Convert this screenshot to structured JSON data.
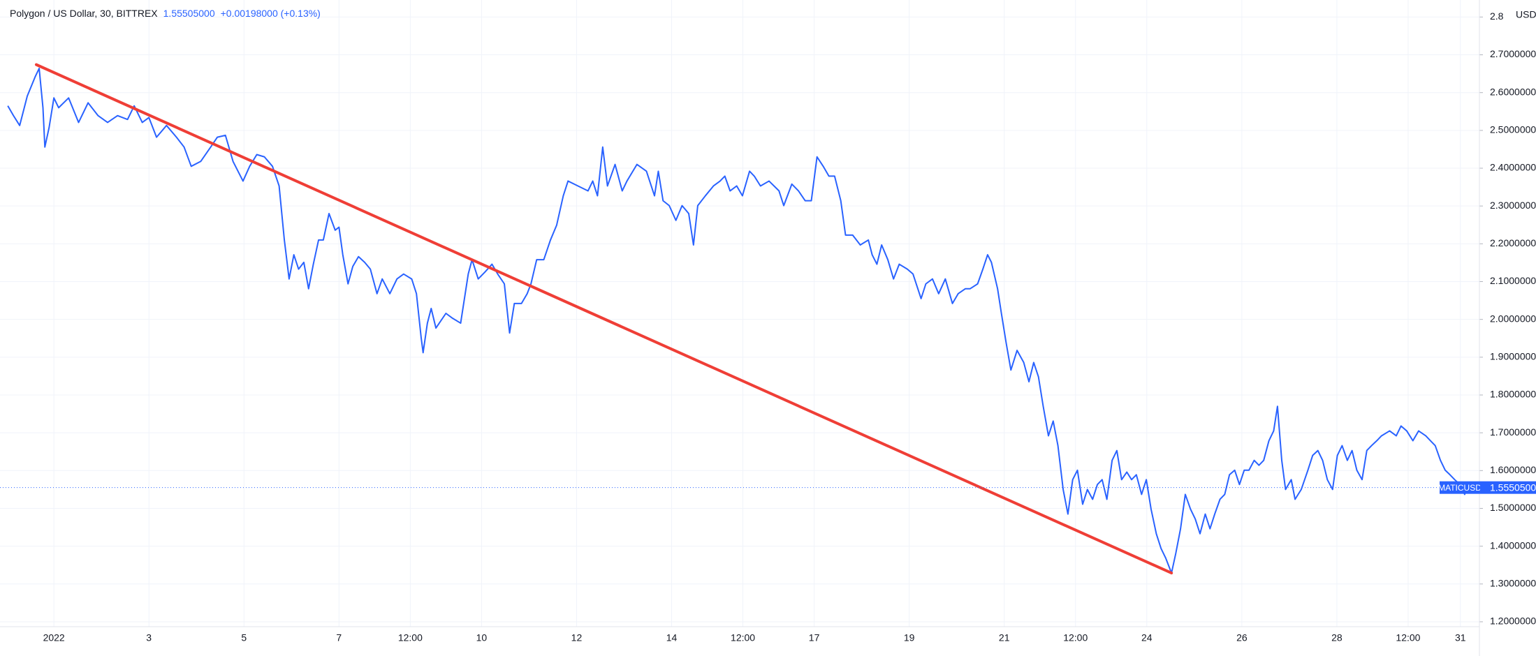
{
  "chart_data": {
    "type": "line",
    "title": "Polygon / US Dollar, 30, BITTREX",
    "change": "+0.00198000 (+0.13%)",
    "symbol": "MATICUSD",
    "currency": "USD",
    "last": {
      "value": 1.55505,
      "label": "1.55505000"
    },
    "grid": true,
    "xlim": [
      -0.134,
      31.0
    ],
    "ylim": [
      1.187,
      2.845
    ],
    "xticks": [
      {
        "value": 1,
        "label": "2022"
      },
      3,
      5,
      7,
      {
        "value": 8.5,
        "label": "12:00"
      },
      10,
      12,
      14,
      {
        "value": 15.5,
        "label": "12:00"
      },
      17,
      19,
      21,
      {
        "value": 22.5,
        "label": "12:00"
      },
      24,
      26,
      28,
      {
        "value": 29.5,
        "label": "12:00"
      },
      {
        "value": 30.6,
        "label": "31"
      }
    ],
    "yticks": [
      {
        "value": 1.2,
        "label": "1.20000000"
      },
      {
        "value": 1.3,
        "label": "1.30000000"
      },
      {
        "value": 1.4,
        "label": "1.40000000"
      },
      {
        "value": 1.5,
        "label": "1.50000000"
      },
      {
        "value": 1.6,
        "label": "1.60000000"
      },
      {
        "value": 1.7,
        "label": "1.70000000"
      },
      {
        "value": 1.8,
        "label": "1.80000000"
      },
      {
        "value": 1.9,
        "label": "1.90000000"
      },
      {
        "value": 2.0,
        "label": "2.00000000"
      },
      {
        "value": 2.1,
        "label": "2.10000000"
      },
      {
        "value": 2.2,
        "label": "2.20000000"
      },
      {
        "value": 2.3,
        "label": "2.30000000"
      },
      {
        "value": 2.4,
        "label": "2.40000000"
      },
      {
        "value": 2.5,
        "label": "2.50000000"
      },
      {
        "value": 2.6,
        "label": "2.60000000"
      },
      {
        "value": 2.7,
        "label": "2.70000000"
      },
      2.8
    ],
    "trendline": {
      "color": "#ef3e36",
      "x": [
        0.63,
        24.52
      ],
      "values": [
        2.674,
        1.329
      ]
    },
    "x": [
      0.03,
      0.15,
      0.28,
      0.44,
      0.61,
      0.69,
      0.77,
      0.81,
      0.9,
      1.0,
      1.1,
      1.31,
      1.52,
      1.72,
      1.93,
      2.13,
      2.34,
      2.55,
      2.69,
      2.86,
      3.0,
      3.16,
      3.37,
      3.58,
      3.74,
      3.89,
      4.09,
      4.3,
      4.44,
      4.61,
      4.77,
      4.98,
      5.12,
      5.27,
      5.43,
      5.6,
      5.74,
      5.85,
      5.95,
      6.05,
      6.15,
      6.26,
      6.36,
      6.46,
      6.57,
      6.67,
      6.79,
      6.92,
      7.0,
      7.08,
      7.19,
      7.29,
      7.41,
      7.54,
      7.66,
      7.8,
      7.91,
      8.07,
      8.22,
      8.36,
      8.53,
      8.63,
      8.73,
      8.77,
      8.86,
      8.94,
      9.04,
      9.25,
      9.39,
      9.56,
      9.72,
      9.8,
      9.93,
      10.07,
      10.22,
      10.34,
      10.48,
      10.59,
      10.69,
      10.84,
      10.96,
      11.04,
      11.16,
      11.31,
      11.45,
      11.58,
      11.72,
      11.82,
      12.03,
      12.24,
      12.34,
      12.44,
      12.55,
      12.65,
      12.81,
      12.96,
      13.06,
      13.27,
      13.47,
      13.64,
      13.72,
      13.82,
      13.95,
      14.09,
      14.22,
      14.36,
      14.46,
      14.55,
      14.71,
      14.88,
      15.02,
      15.12,
      15.23,
      15.37,
      15.49,
      15.64,
      15.74,
      15.87,
      16.05,
      16.26,
      16.36,
      16.53,
      16.67,
      16.81,
      16.94,
      17.06,
      17.19,
      17.31,
      17.43,
      17.56,
      17.66,
      17.81,
      17.97,
      18.14,
      18.22,
      18.32,
      18.42,
      18.55,
      18.67,
      18.79,
      18.96,
      19.08,
      19.25,
      19.35,
      19.49,
      19.62,
      19.76,
      19.91,
      20.03,
      20.18,
      20.28,
      20.44,
      20.55,
      20.65,
      20.73,
      20.86,
      20.94,
      21.04,
      21.14,
      21.27,
      21.41,
      21.52,
      21.62,
      21.72,
      21.82,
      21.93,
      22.03,
      22.13,
      22.24,
      22.34,
      22.44,
      22.54,
      22.65,
      22.75,
      22.86,
      22.96,
      23.06,
      23.16,
      23.27,
      23.37,
      23.47,
      23.58,
      23.68,
      23.78,
      23.89,
      23.99,
      24.09,
      24.2,
      24.3,
      24.4,
      24.52,
      24.61,
      24.71,
      24.81,
      24.92,
      25.02,
      25.12,
      25.23,
      25.33,
      25.43,
      25.54,
      25.64,
      25.74,
      25.85,
      25.95,
      26.05,
      26.15,
      26.26,
      26.36,
      26.46,
      26.57,
      26.67,
      26.75,
      26.84,
      26.92,
      27.04,
      27.12,
      27.25,
      27.39,
      27.49,
      27.6,
      27.7,
      27.8,
      27.91,
      28.01,
      28.11,
      28.22,
      28.32,
      28.42,
      28.53,
      28.63,
      28.73,
      28.84,
      28.94,
      29.11,
      29.25,
      29.35,
      29.47,
      29.6,
      29.72,
      29.87,
      29.97,
      30.07,
      30.18,
      30.28,
      30.38,
      30.48,
      30.59,
      30.69,
      30.72
    ],
    "series": [
      {
        "name": "MATICUSD",
        "color": "#2962ff",
        "values": [
          2.565,
          2.539,
          2.513,
          2.591,
          2.643,
          2.664,
          2.56,
          2.456,
          2.508,
          2.586,
          2.56,
          2.586,
          2.521,
          2.573,
          2.539,
          2.521,
          2.539,
          2.529,
          2.565,
          2.521,
          2.534,
          2.482,
          2.513,
          2.482,
          2.456,
          2.405,
          2.418,
          2.456,
          2.482,
          2.487,
          2.418,
          2.366,
          2.405,
          2.436,
          2.43,
          2.405,
          2.353,
          2.21,
          2.107,
          2.171,
          2.133,
          2.151,
          2.081,
          2.146,
          2.21,
          2.21,
          2.28,
          2.236,
          2.244,
          2.171,
          2.094,
          2.14,
          2.166,
          2.151,
          2.133,
          2.068,
          2.107,
          2.068,
          2.107,
          2.12,
          2.107,
          2.068,
          1.951,
          1.912,
          1.99,
          2.029,
          1.977,
          2.016,
          2.003,
          1.99,
          2.12,
          2.158,
          2.107,
          2.125,
          2.146,
          2.12,
          2.094,
          1.964,
          2.042,
          2.042,
          2.068,
          2.094,
          2.158,
          2.158,
          2.21,
          2.249,
          2.327,
          2.366,
          2.353,
          2.34,
          2.366,
          2.327,
          2.456,
          2.353,
          2.41,
          2.34,
          2.366,
          2.41,
          2.392,
          2.327,
          2.392,
          2.314,
          2.301,
          2.262,
          2.301,
          2.28,
          2.197,
          2.301,
          2.327,
          2.353,
          2.366,
          2.379,
          2.34,
          2.353,
          2.327,
          2.392,
          2.379,
          2.353,
          2.366,
          2.34,
          2.301,
          2.358,
          2.34,
          2.314,
          2.314,
          2.43,
          2.405,
          2.379,
          2.379,
          2.314,
          2.223,
          2.223,
          2.197,
          2.21,
          2.171,
          2.146,
          2.197,
          2.158,
          2.107,
          2.146,
          2.133,
          2.12,
          2.055,
          2.094,
          2.107,
          2.068,
          2.107,
          2.042,
          2.068,
          2.081,
          2.081,
          2.094,
          2.133,
          2.171,
          2.151,
          2.081,
          2.016,
          1.938,
          1.866,
          1.918,
          1.886,
          1.835,
          1.886,
          1.848,
          1.77,
          1.692,
          1.731,
          1.666,
          1.55,
          1.485,
          1.576,
          1.601,
          1.511,
          1.55,
          1.524,
          1.563,
          1.576,
          1.524,
          1.627,
          1.653,
          1.576,
          1.596,
          1.576,
          1.589,
          1.537,
          1.576,
          1.498,
          1.433,
          1.394,
          1.368,
          1.329,
          1.381,
          1.446,
          1.537,
          1.498,
          1.472,
          1.433,
          1.485,
          1.446,
          1.485,
          1.524,
          1.537,
          1.589,
          1.601,
          1.563,
          1.601,
          1.601,
          1.627,
          1.614,
          1.627,
          1.679,
          1.705,
          1.77,
          1.627,
          1.55,
          1.576,
          1.524,
          1.55,
          1.601,
          1.64,
          1.653,
          1.627,
          1.576,
          1.55,
          1.64,
          1.666,
          1.627,
          1.653,
          1.601,
          1.576,
          1.653,
          1.666,
          1.679,
          1.692,
          1.705,
          1.692,
          1.718,
          1.705,
          1.679,
          1.705,
          1.692,
          1.679,
          1.666,
          1.627,
          1.601,
          1.589,
          1.576,
          1.563,
          1.537,
          1.555
        ]
      }
    ]
  }
}
